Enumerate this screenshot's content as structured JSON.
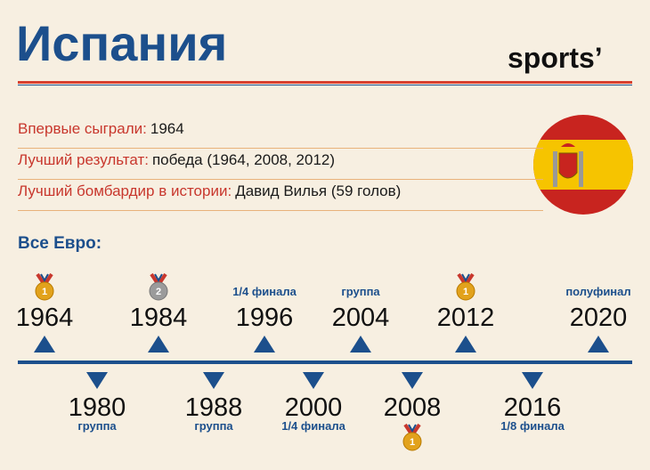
{
  "header": {
    "title": "Испания",
    "brand": "sports’"
  },
  "facts": [
    {
      "label": "Впервые сыграли:",
      "value": "1964"
    },
    {
      "label": "Лучший результат:",
      "value": "победа (1964, 2008, 2012)"
    },
    {
      "label": "Лучший бомбардир в истории:",
      "value": "Давид Вилья (59 голов)"
    }
  ],
  "section_title": "Все Евро:",
  "timeline": {
    "top": [
      {
        "year": "1964",
        "medal": "1"
      },
      {
        "year": "1984",
        "medal": "2"
      },
      {
        "year": "1996",
        "result": "1/4 финала"
      },
      {
        "year": "2004",
        "result": "группа"
      },
      {
        "year": "2012",
        "medal": "1"
      },
      {
        "year": "2020",
        "result": "полуфинал"
      }
    ],
    "bottom": [
      {
        "year": "1980",
        "result": "группа"
      },
      {
        "year": "1988",
        "result": "группа"
      },
      {
        "year": "2000",
        "result": "1/4 финала"
      },
      {
        "year": "2008",
        "medal": "1"
      },
      {
        "year": "2016",
        "result": "1/8 финала"
      }
    ]
  }
}
